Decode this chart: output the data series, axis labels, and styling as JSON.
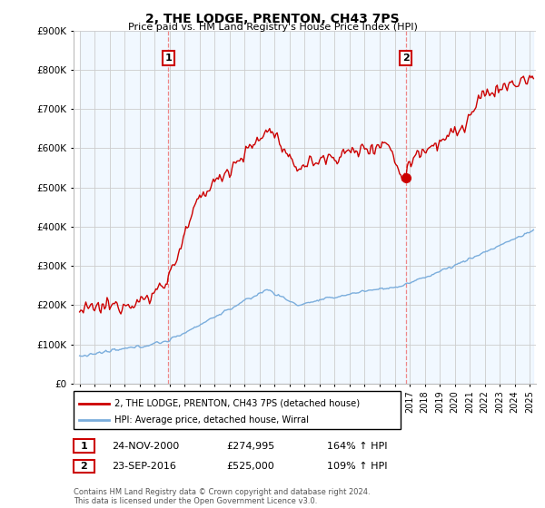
{
  "title": "2, THE LODGE, PRENTON, CH43 7PS",
  "subtitle": "Price paid vs. HM Land Registry's House Price Index (HPI)",
  "ylabel_ticks": [
    "£0",
    "£100K",
    "£200K",
    "£300K",
    "£400K",
    "£500K",
    "£600K",
    "£700K",
    "£800K",
    "£900K"
  ],
  "ytick_values": [
    0,
    100000,
    200000,
    300000,
    400000,
    500000,
    600000,
    700000,
    800000,
    900000
  ],
  "ylim": [
    0,
    900000
  ],
  "xlim_start": 1994.6,
  "xlim_end": 2025.4,
  "sale1_x": 2000.92,
  "sale1_y": 274995,
  "sale2_x": 2016.73,
  "sale2_y": 525000,
  "marker_y": 830000,
  "legend_line1": "2, THE LODGE, PRENTON, CH43 7PS (detached house)",
  "legend_line2": "HPI: Average price, detached house, Wirral",
  "annotation1_label": "1",
  "annotation1_date": "24-NOV-2000",
  "annotation1_price": "£274,995",
  "annotation1_hpi": "164% ↑ HPI",
  "annotation2_label": "2",
  "annotation2_date": "23-SEP-2016",
  "annotation2_price": "£525,000",
  "annotation2_hpi": "109% ↑ HPI",
  "footer": "Contains HM Land Registry data © Crown copyright and database right 2024.\nThis data is licensed under the Open Government Licence v3.0.",
  "line_color_red": "#cc0000",
  "line_color_blue": "#7aaddc",
  "fill_color_blue": "#ddeeff",
  "vline_color": "#ee8888",
  "marker_box_color": "#cc0000",
  "background_color": "#ffffff",
  "grid_color": "#cccccc"
}
